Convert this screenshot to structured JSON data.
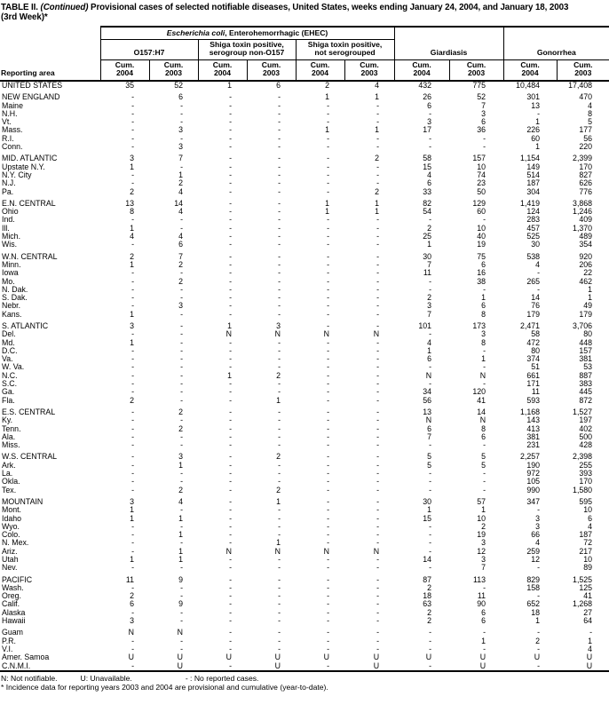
{
  "title": {
    "t1": "TABLE II. ",
    "t2": "(Continued)",
    "t3": " Provisional cases of selected notifiable diseases, United States, weeks ending January 24, 2004, and January 18, 2003",
    "line2": "(3rd Week)*"
  },
  "header": {
    "reporting_area": "Reporting area",
    "ehec_italic": "Escherichia coli",
    "ehec_rest": ", Enterohemorrhagic (EHEC)",
    "o157": "O157:H7",
    "non_o157_line1": "Shiga toxin positive,",
    "non_o157_line2": "serogroup non-O157",
    "not_sero_line1": "Shiga toxin positive,",
    "not_sero_line2": "not serogrouped",
    "giardiasis": "Giardiasis",
    "gonorrhea": "Gonorrhea",
    "cum_label": "Cum.",
    "years": [
      "2004",
      "2003",
      "2004",
      "2003",
      "2004",
      "2003",
      "2004",
      "2003",
      "2004",
      "2003"
    ]
  },
  "sections": [
    {
      "rows": [
        {
          "area": "UNITED STATES",
          "values": [
            "35",
            "52",
            "1",
            "6",
            "2",
            "4",
            "432",
            "775",
            "10,484",
            "17,408"
          ]
        }
      ]
    },
    {
      "rows": [
        {
          "area": "NEW ENGLAND",
          "values": [
            "-",
            "6",
            "-",
            "-",
            "1",
            "1",
            "26",
            "52",
            "301",
            "470"
          ]
        },
        {
          "area": "Maine",
          "values": [
            "-",
            "-",
            "-",
            "-",
            "-",
            "-",
            "6",
            "7",
            "13",
            "4"
          ]
        },
        {
          "area": "N.H.",
          "values": [
            "-",
            "-",
            "-",
            "-",
            "-",
            "-",
            "-",
            "3",
            "-",
            "8"
          ]
        },
        {
          "area": "Vt.",
          "values": [
            "-",
            "-",
            "-",
            "-",
            "-",
            "-",
            "3",
            "6",
            "1",
            "5"
          ]
        },
        {
          "area": "Mass.",
          "values": [
            "-",
            "3",
            "-",
            "-",
            "1",
            "1",
            "17",
            "36",
            "226",
            "177"
          ]
        },
        {
          "area": "R.I.",
          "values": [
            "-",
            "-",
            "-",
            "-",
            "-",
            "-",
            "-",
            "-",
            "60",
            "56"
          ]
        },
        {
          "area": "Conn.",
          "values": [
            "-",
            "3",
            "-",
            "-",
            "-",
            "-",
            "-",
            "-",
            "1",
            "220"
          ]
        }
      ]
    },
    {
      "rows": [
        {
          "area": "MID. ATLANTIC",
          "values": [
            "3",
            "7",
            "-",
            "-",
            "-",
            "2",
            "58",
            "157",
            "1,154",
            "2,399"
          ]
        },
        {
          "area": "Upstate N.Y.",
          "values": [
            "1",
            "-",
            "-",
            "-",
            "-",
            "-",
            "15",
            "10",
            "149",
            "170"
          ]
        },
        {
          "area": "N.Y. City",
          "values": [
            "-",
            "1",
            "-",
            "-",
            "-",
            "-",
            "4",
            "74",
            "514",
            "827"
          ]
        },
        {
          "area": "N.J.",
          "values": [
            "-",
            "2",
            "-",
            "-",
            "-",
            "-",
            "6",
            "23",
            "187",
            "626"
          ]
        },
        {
          "area": "Pa.",
          "values": [
            "2",
            "4",
            "-",
            "-",
            "-",
            "2",
            "33",
            "50",
            "304",
            "776"
          ]
        }
      ]
    },
    {
      "rows": [
        {
          "area": "E.N. CENTRAL",
          "values": [
            "13",
            "14",
            "-",
            "-",
            "1",
            "1",
            "82",
            "129",
            "1,419",
            "3,868"
          ]
        },
        {
          "area": "Ohio",
          "values": [
            "8",
            "4",
            "-",
            "-",
            "1",
            "1",
            "54",
            "60",
            "124",
            "1,246"
          ]
        },
        {
          "area": "Ind.",
          "values": [
            "-",
            "-",
            "-",
            "-",
            "-",
            "-",
            "-",
            "-",
            "283",
            "409"
          ]
        },
        {
          "area": "Ill.",
          "values": [
            "1",
            "-",
            "-",
            "-",
            "-",
            "-",
            "2",
            "10",
            "457",
            "1,370"
          ]
        },
        {
          "area": "Mich.",
          "values": [
            "4",
            "4",
            "-",
            "-",
            "-",
            "-",
            "25",
            "40",
            "525",
            "489"
          ]
        },
        {
          "area": "Wis.",
          "values": [
            "-",
            "6",
            "-",
            "-",
            "-",
            "-",
            "1",
            "19",
            "30",
            "354"
          ]
        }
      ]
    },
    {
      "rows": [
        {
          "area": "W.N. CENTRAL",
          "values": [
            "2",
            "7",
            "-",
            "-",
            "-",
            "-",
            "30",
            "75",
            "538",
            "920"
          ]
        },
        {
          "area": "Minn.",
          "values": [
            "1",
            "2",
            "-",
            "-",
            "-",
            "-",
            "7",
            "6",
            "4",
            "206"
          ]
        },
        {
          "area": "Iowa",
          "values": [
            "-",
            "-",
            "-",
            "-",
            "-",
            "-",
            "11",
            "16",
            "-",
            "22"
          ]
        },
        {
          "area": "Mo.",
          "values": [
            "-",
            "2",
            "-",
            "-",
            "-",
            "-",
            "-",
            "38",
            "265",
            "462"
          ]
        },
        {
          "area": "N. Dak.",
          "values": [
            "-",
            "-",
            "-",
            "-",
            "-",
            "-",
            "-",
            "-",
            "-",
            "1"
          ]
        },
        {
          "area": "S. Dak.",
          "values": [
            "-",
            "-",
            "-",
            "-",
            "-",
            "-",
            "2",
            "1",
            "14",
            "1"
          ]
        },
        {
          "area": "Nebr.",
          "values": [
            "-",
            "3",
            "-",
            "-",
            "-",
            "-",
            "3",
            "6",
            "76",
            "49"
          ]
        },
        {
          "area": "Kans.",
          "values": [
            "1",
            "-",
            "-",
            "-",
            "-",
            "-",
            "7",
            "8",
            "179",
            "179"
          ]
        }
      ]
    },
    {
      "rows": [
        {
          "area": "S. ATLANTIC",
          "values": [
            "3",
            "-",
            "1",
            "3",
            "-",
            "-",
            "101",
            "173",
            "2,471",
            "3,706"
          ]
        },
        {
          "area": "Del.",
          "values": [
            "-",
            "-",
            "N",
            "N",
            "N",
            "N",
            "-",
            "3",
            "58",
            "80"
          ]
        },
        {
          "area": "Md.",
          "values": [
            "1",
            "-",
            "-",
            "-",
            "-",
            "-",
            "4",
            "8",
            "472",
            "448"
          ]
        },
        {
          "area": "D.C.",
          "values": [
            "-",
            "-",
            "-",
            "-",
            "-",
            "-",
            "1",
            "-",
            "80",
            "157"
          ]
        },
        {
          "area": "Va.",
          "values": [
            "-",
            "-",
            "-",
            "-",
            "-",
            "-",
            "6",
            "1",
            "374",
            "381"
          ]
        },
        {
          "area": "W. Va.",
          "values": [
            "-",
            "-",
            "-",
            "-",
            "-",
            "-",
            "-",
            "-",
            "51",
            "53"
          ]
        },
        {
          "area": "N.C.",
          "values": [
            "-",
            "-",
            "1",
            "2",
            "-",
            "-",
            "N",
            "N",
            "661",
            "887"
          ]
        },
        {
          "area": "S.C.",
          "values": [
            "-",
            "-",
            "-",
            "-",
            "-",
            "-",
            "-",
            "-",
            "171",
            "383"
          ]
        },
        {
          "area": "Ga.",
          "values": [
            "-",
            "-",
            "-",
            "-",
            "-",
            "-",
            "34",
            "120",
            "11",
            "445"
          ]
        },
        {
          "area": "Fla.",
          "values": [
            "2",
            "-",
            "-",
            "1",
            "-",
            "-",
            "56",
            "41",
            "593",
            "872"
          ]
        }
      ]
    },
    {
      "rows": [
        {
          "area": "E.S. CENTRAL",
          "values": [
            "-",
            "2",
            "-",
            "-",
            "-",
            "-",
            "13",
            "14",
            "1,168",
            "1,527"
          ]
        },
        {
          "area": "Ky.",
          "values": [
            "-",
            "-",
            "-",
            "-",
            "-",
            "-",
            "N",
            "N",
            "143",
            "197"
          ]
        },
        {
          "area": "Tenn.",
          "values": [
            "-",
            "2",
            "-",
            "-",
            "-",
            "-",
            "6",
            "8",
            "413",
            "402"
          ]
        },
        {
          "area": "Ala.",
          "values": [
            "-",
            "-",
            "-",
            "-",
            "-",
            "-",
            "7",
            "6",
            "381",
            "500"
          ]
        },
        {
          "area": "Miss.",
          "values": [
            "-",
            "-",
            "-",
            "-",
            "-",
            "-",
            "-",
            "-",
            "231",
            "428"
          ]
        }
      ]
    },
    {
      "rows": [
        {
          "area": "W.S. CENTRAL",
          "values": [
            "-",
            "3",
            "-",
            "2",
            "-",
            "-",
            "5",
            "5",
            "2,257",
            "2,398"
          ]
        },
        {
          "area": "Ark.",
          "values": [
            "-",
            "1",
            "-",
            "-",
            "-",
            "-",
            "5",
            "5",
            "190",
            "255"
          ]
        },
        {
          "area": "La.",
          "values": [
            "-",
            "-",
            "-",
            "-",
            "-",
            "-",
            "-",
            "-",
            "972",
            "393"
          ]
        },
        {
          "area": "Okla.",
          "values": [
            "-",
            "-",
            "-",
            "-",
            "-",
            "-",
            "-",
            "-",
            "105",
            "170"
          ]
        },
        {
          "area": "Tex.",
          "values": [
            "-",
            "2",
            "-",
            "2",
            "-",
            "-",
            "-",
            "-",
            "990",
            "1,580"
          ]
        }
      ]
    },
    {
      "rows": [
        {
          "area": "MOUNTAIN",
          "values": [
            "3",
            "4",
            "-",
            "1",
            "-",
            "-",
            "30",
            "57",
            "347",
            "595"
          ]
        },
        {
          "area": "Mont.",
          "values": [
            "1",
            "-",
            "-",
            "-",
            "-",
            "-",
            "1",
            "1",
            "-",
            "10"
          ]
        },
        {
          "area": "Idaho",
          "values": [
            "1",
            "1",
            "-",
            "-",
            "-",
            "-",
            "15",
            "10",
            "3",
            "6"
          ]
        },
        {
          "area": "Wyo.",
          "values": [
            "-",
            "-",
            "-",
            "-",
            "-",
            "-",
            "-",
            "2",
            "3",
            "4"
          ]
        },
        {
          "area": "Colo.",
          "values": [
            "-",
            "1",
            "-",
            "-",
            "-",
            "-",
            "-",
            "19",
            "66",
            "187"
          ]
        },
        {
          "area": "N. Mex.",
          "values": [
            "-",
            "-",
            "-",
            "1",
            "-",
            "-",
            "-",
            "3",
            "4",
            "72"
          ]
        },
        {
          "area": "Ariz.",
          "values": [
            "-",
            "1",
            "N",
            "N",
            "N",
            "N",
            "-",
            "12",
            "259",
            "217"
          ]
        },
        {
          "area": "Utah",
          "values": [
            "1",
            "1",
            "-",
            "-",
            "-",
            "-",
            "14",
            "3",
            "12",
            "10"
          ]
        },
        {
          "area": "Nev.",
          "values": [
            "-",
            "-",
            "-",
            "-",
            "-",
            "-",
            "-",
            "7",
            "-",
            "89"
          ]
        }
      ]
    },
    {
      "rows": [
        {
          "area": "PACIFIC",
          "values": [
            "11",
            "9",
            "-",
            "-",
            "-",
            "-",
            "87",
            "113",
            "829",
            "1,525"
          ]
        },
        {
          "area": "Wash.",
          "values": [
            "-",
            "-",
            "-",
            "-",
            "-",
            "-",
            "2",
            "-",
            "158",
            "125"
          ]
        },
        {
          "area": "Oreg.",
          "values": [
            "2",
            "-",
            "-",
            "-",
            "-",
            "-",
            "18",
            "11",
            "-",
            "41"
          ]
        },
        {
          "area": "Calif.",
          "values": [
            "6",
            "9",
            "-",
            "-",
            "-",
            "-",
            "63",
            "90",
            "652",
            "1,268"
          ]
        },
        {
          "area": "Alaska",
          "values": [
            "-",
            "-",
            "-",
            "-",
            "-",
            "-",
            "2",
            "6",
            "18",
            "27"
          ]
        },
        {
          "area": "Hawaii",
          "values": [
            "3",
            "-",
            "-",
            "-",
            "-",
            "-",
            "2",
            "6",
            "1",
            "64"
          ]
        }
      ]
    },
    {
      "rows": [
        {
          "area": "Guam",
          "values": [
            "N",
            "N",
            "-",
            "-",
            "-",
            "-",
            "-",
            "-",
            "-",
            "-"
          ]
        },
        {
          "area": "P.R.",
          "values": [
            "-",
            "-",
            "-",
            "-",
            "-",
            "-",
            "-",
            "1",
            "2",
            "1"
          ]
        },
        {
          "area": "V.I.",
          "values": [
            "-",
            "-",
            "-",
            "-",
            "-",
            "-",
            "-",
            "-",
            "-",
            "4"
          ]
        },
        {
          "area": "Amer. Samoa",
          "values": [
            "U",
            "U",
            "U",
            "U",
            "U",
            "U",
            "U",
            "U",
            "U",
            "U"
          ]
        },
        {
          "area": "C.N.M.I.",
          "values": [
            "-",
            "U",
            "-",
            "U",
            "-",
            "U",
            "-",
            "U",
            "-",
            "U"
          ]
        }
      ]
    }
  ],
  "footnotes": {
    "n": "N: Not notifiable.",
    "u": "U: Unavailable.",
    "dash": "- : No reported cases.",
    "star": "* Incidence data for reporting years 2003 and 2004 are provisional and cumulative (year-to-date)."
  }
}
